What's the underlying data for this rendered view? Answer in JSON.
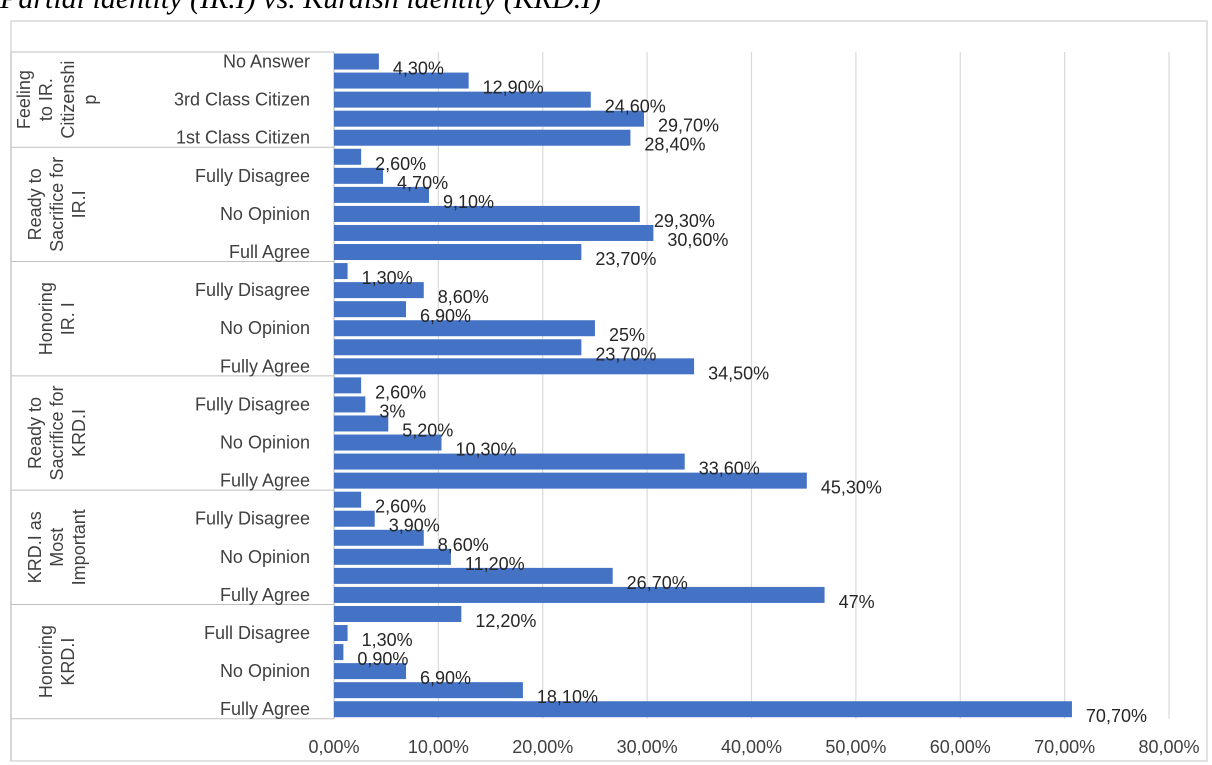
{
  "page": {
    "title": "Partial identity (IR.I) vs. Kurdish identity (KRD.I)"
  },
  "chart_data": {
    "type": "bar",
    "orientation": "horizontal",
    "title": "",
    "xlabel": "",
    "ylabel": "",
    "xlim": [
      0,
      80
    ],
    "x_ticks": [
      "0,00%",
      "10,00%",
      "20,00%",
      "30,00%",
      "40,00%",
      "50,00%",
      "60,00%",
      "70,00%",
      "80,00%"
    ],
    "grid": "vertical",
    "bar_color": "#4472C4",
    "groups": [
      {
        "name": "Feeling to IR. Citizenship",
        "name_lines": [
          "Feeling",
          "to IR.",
          "Citizenshi",
          "p"
        ],
        "bars": [
          {
            "label": "No Answer",
            "value": 4.3,
            "value_label": "4,30%"
          },
          {
            "label": "",
            "value": 12.9,
            "value_label": "12,90%"
          },
          {
            "label": "3rd Class Citizen",
            "value": 24.6,
            "value_label": "24,60%"
          },
          {
            "label": "",
            "value": 29.7,
            "value_label": "29,70%"
          },
          {
            "label": "1st Class Citizen",
            "value": 28.4,
            "value_label": "28,40%"
          }
        ]
      },
      {
        "name": "Ready to Sacrifice for IR.I",
        "name_lines": [
          "Ready to",
          "Sacrifice for",
          "IR.I"
        ],
        "bars": [
          {
            "label": "",
            "value": 2.6,
            "value_label": "2,60%"
          },
          {
            "label": "Fully Disagree",
            "value": 4.7,
            "value_label": "4,70%"
          },
          {
            "label": "",
            "value": 9.1,
            "value_label": "9,10%"
          },
          {
            "label": "No Opinion",
            "value": 29.3,
            "value_label": "29,30%"
          },
          {
            "label": "",
            "value": 30.6,
            "value_label": "30,60%"
          },
          {
            "label": "Full Agree",
            "value": 23.7,
            "value_label": "23,70%"
          }
        ]
      },
      {
        "name": "Honoring IR. I",
        "name_lines": [
          "Honoring",
          "IR. I"
        ],
        "bars": [
          {
            "label": "",
            "value": 1.3,
            "value_label": "1,30%"
          },
          {
            "label": "Fully Disagree",
            "value": 8.6,
            "value_label": "8,60%"
          },
          {
            "label": "",
            "value": 6.9,
            "value_label": "6,90%"
          },
          {
            "label": "No Opinion",
            "value": 25,
            "value_label": "25%"
          },
          {
            "label": "",
            "value": 23.7,
            "value_label": "23,70%"
          },
          {
            "label": "Fully Agree",
            "value": 34.5,
            "value_label": "34,50%"
          }
        ]
      },
      {
        "name": "Ready to Sacrifice for KRD.I",
        "name_lines": [
          "Ready to",
          "Sacrifice for",
          "KRD.I"
        ],
        "bars": [
          {
            "label": "",
            "value": 2.6,
            "value_label": "2,60%"
          },
          {
            "label": "Fully Disagree",
            "value": 3,
            "value_label": "3%"
          },
          {
            "label": "",
            "value": 5.2,
            "value_label": "5,20%"
          },
          {
            "label": "No Opinion",
            "value": 10.3,
            "value_label": "10,30%"
          },
          {
            "label": "",
            "value": 33.6,
            "value_label": "33,60%"
          },
          {
            "label": "Fully Agree",
            "value": 45.3,
            "value_label": "45,30%"
          }
        ]
      },
      {
        "name": "KRD.I as Most Important",
        "name_lines": [
          "KRD.I as",
          "Most",
          "Important"
        ],
        "bars": [
          {
            "label": "",
            "value": 2.6,
            "value_label": "2,60%"
          },
          {
            "label": "Fully Disagree",
            "value": 3.9,
            "value_label": "3,90%"
          },
          {
            "label": "",
            "value": 8.6,
            "value_label": "8,60%"
          },
          {
            "label": "No Opinion",
            "value": 11.2,
            "value_label": "11,20%"
          },
          {
            "label": "",
            "value": 26.7,
            "value_label": "26,70%"
          },
          {
            "label": "Fully Agree",
            "value": 47,
            "value_label": "47%"
          }
        ]
      },
      {
        "name": "Honoring KRD.I",
        "name_lines": [
          "Honoring",
          "KRD.I"
        ],
        "bars": [
          {
            "label": "",
            "value": 12.2,
            "value_label": "12,20%"
          },
          {
            "label": "Full Disagree",
            "value": 1.3,
            "value_label": "1,30%"
          },
          {
            "label": "",
            "value": 0.9,
            "value_label": "0,90%"
          },
          {
            "label": "No Opinion",
            "value": 6.9,
            "value_label": "6,90%"
          },
          {
            "label": "",
            "value": 18.1,
            "value_label": "18,10%"
          },
          {
            "label": "Fully Agree",
            "value": 70.7,
            "value_label": "70,70%"
          }
        ]
      }
    ]
  }
}
